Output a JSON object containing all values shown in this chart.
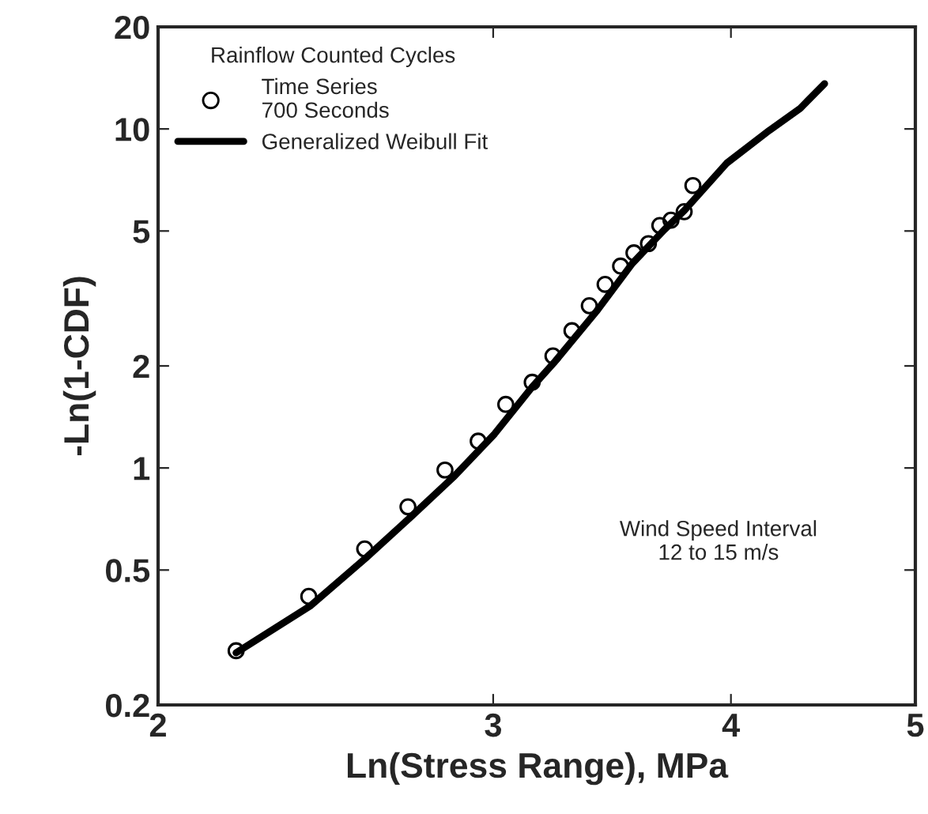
{
  "chart_data": {
    "type": "scatter",
    "xlabel": "Ln(Stress Range), MPa",
    "ylabel": "-Ln(1-CDF)",
    "legend_title": "Rainflow Counted Cycles",
    "series": [
      {
        "name": "Time Series\n700 Seconds",
        "marker": "circle",
        "color": "#000000",
        "x": [
          2.198,
          2.4,
          2.568,
          2.706,
          2.83,
          2.946,
          3.046,
          3.145,
          3.225,
          3.3,
          3.37,
          3.435,
          3.5,
          3.557,
          3.62,
          3.67,
          3.72,
          3.78,
          3.82
        ],
        "values": [
          0.289,
          0.418,
          0.577,
          0.768,
          0.986,
          1.2,
          1.54,
          1.79,
          2.14,
          2.54,
          3.01,
          3.48,
          3.94,
          4.31,
          4.59,
          5.19,
          5.38,
          5.7,
          6.81
        ]
      },
      {
        "name": "Generalized Weibull Fit",
        "type": "line",
        "marker": "none",
        "line_style": "solid",
        "color": "#000000",
        "x": [
          2.198,
          2.406,
          2.57,
          2.716,
          2.858,
          3.005,
          3.144,
          3.228,
          3.4,
          3.55,
          3.69,
          3.78,
          3.98,
          4.19,
          4.35,
          4.48
        ],
        "values": [
          0.285,
          0.393,
          0.541,
          0.718,
          0.938,
          1.26,
          1.73,
          2.04,
          2.9,
          4.01,
          5.04,
          5.74,
          7.93,
          9.9,
          11.5,
          13.6
        ]
      }
    ],
    "log": "xy",
    "xlim": [
      2,
      5
    ],
    "ylim": [
      0.2,
      20
    ],
    "xticks": [
      2,
      3,
      4,
      5
    ],
    "yticks": [
      0.2,
      0.5,
      1,
      2,
      5,
      10,
      20
    ],
    "grid": false,
    "legend": "top left",
    "annotations": [
      "Wind Speed Interval\n12 to 15 m/s"
    ]
  }
}
